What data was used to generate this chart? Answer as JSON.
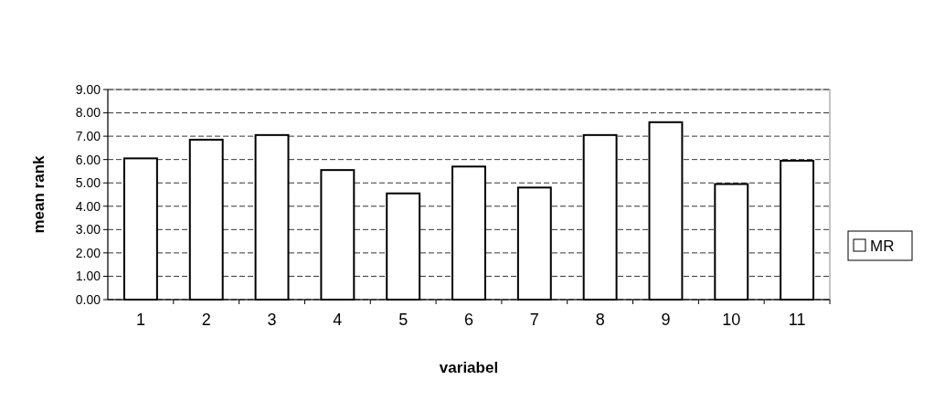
{
  "chart_data": {
    "type": "bar",
    "xlabel": "variabel",
    "ylabel": "mean rank",
    "categories": [
      "1",
      "2",
      "3",
      "4",
      "5",
      "6",
      "7",
      "8",
      "9",
      "10",
      "11"
    ],
    "series": [
      {
        "name": "MR",
        "color": "#ffffff",
        "values": [
          6.05,
          6.85,
          7.05,
          5.55,
          4.55,
          5.7,
          4.8,
          7.05,
          7.6,
          4.95,
          5.95
        ]
      }
    ],
    "ylim": [
      0,
      9
    ],
    "yticks": [
      {
        "value": 0,
        "label": "0.00"
      },
      {
        "value": 1,
        "label": "1.00"
      },
      {
        "value": 2,
        "label": "2.00"
      },
      {
        "value": 3,
        "label": "3.00"
      },
      {
        "value": 4,
        "label": "4.00"
      },
      {
        "value": 5,
        "label": "5.00"
      },
      {
        "value": 6,
        "label": "6.00"
      },
      {
        "value": 7,
        "label": "7.00"
      },
      {
        "value": 8,
        "label": "8.00"
      },
      {
        "value": 9,
        "label": "9.00"
      }
    ],
    "grid": "y",
    "legend": "right"
  }
}
